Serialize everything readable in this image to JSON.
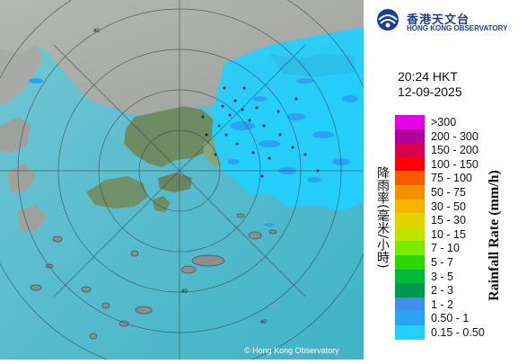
{
  "header": {
    "logo_chinese": "香港天文台",
    "logo_english": "HONG KONG OBSERVATORY"
  },
  "timestamp": {
    "time": "20:24 HKT",
    "date": "12-09-2025"
  },
  "legend": {
    "title_english": "Rainfall Rate (mm/h)",
    "title_chinese": "降雨率(毫米/小時)",
    "items": [
      {
        "label": ">300",
        "color": "#e600e6"
      },
      {
        "label": "200 - 300",
        "color": "#b4009a"
      },
      {
        "label": "150 - 200",
        "color": "#d8004e"
      },
      {
        "label": "100 - 150",
        "color": "#ff0000"
      },
      {
        "label": "75 - 100",
        "color": "#ff5a00"
      },
      {
        "label": "50 - 75",
        "color": "#f39200"
      },
      {
        "label": "30 - 50",
        "color": "#f5b400"
      },
      {
        "label": "15 - 30",
        "color": "#e3d400"
      },
      {
        "label": "10 - 15",
        "color": "#bfe300"
      },
      {
        "label": "7 - 10",
        "color": "#7ee800"
      },
      {
        "label": "5 - 7",
        "color": "#2ed600"
      },
      {
        "label": "3 - 5",
        "color": "#00b93b"
      },
      {
        "label": "2 - 3",
        "color": "#00984f"
      },
      {
        "label": "1 - 2",
        "color": "#3f8ef0"
      },
      {
        "label": "0.50 - 1",
        "color": "#2aa3f5"
      },
      {
        "label": "0.15 - 0.50",
        "color": "#21d0ff"
      }
    ]
  },
  "map": {
    "range_ring_label": "40",
    "copyright": "© Hong Kong Observatory"
  }
}
